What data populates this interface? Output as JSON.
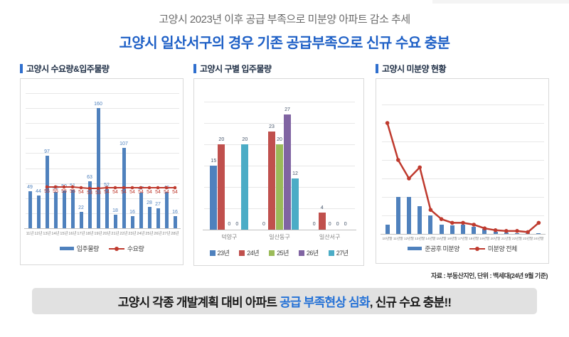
{
  "page": {
    "top_title": "고양시 2023년 이후 공급 부족으로 미분양 아파트 감소 추세",
    "subtitle": "고양시 일산서구의 경우 기존 공급부족으로 신규 수요 충분",
    "banner": {
      "prefix": "고양시 각종 개발계획 대비 아파트 ",
      "highlight": "공급 부족현상 심화",
      "suffix": ", 신규 수요 충분!!"
    },
    "source_note": "자료 : 부동산지인, 단위 : 백세대(24년 9월 기준)"
  },
  "colors": {
    "accent_blue": "#2f6fce",
    "bar_blue": "#4f81bd",
    "line_red": "#bf3a2e",
    "grid": "#e7e7e7"
  },
  "chart_data": [
    {
      "id": "goyang-demand-supply",
      "type": "bar+line",
      "title": "고양시 수요량&입주물량",
      "categories": [
        "11년",
        "12년",
        "13년",
        "14년",
        "15년",
        "16년",
        "17년",
        "18년",
        "19년",
        "20년",
        "21년",
        "22년",
        "23년",
        "24년",
        "25년",
        "26년",
        "27년",
        "28년"
      ],
      "series": [
        {
          "name": "입주물량",
          "kind": "bar",
          "color": "#4f81bd",
          "values": [
            49,
            44,
            97,
            48,
            50,
            51,
            22,
            63,
            160,
            52,
            18,
            107,
            16,
            47,
            28,
            27,
            48,
            16
          ]
        },
        {
          "name": "수요량",
          "kind": "line",
          "color": "#bf3a2e",
          "start_index": 2,
          "values": [
            55,
            55,
            55,
            55,
            54,
            53,
            53,
            54,
            54,
            54,
            54,
            54,
            54,
            54,
            54,
            54
          ]
        }
      ],
      "ylim": [
        0,
        180
      ],
      "grid_step": 20,
      "show_labels": true,
      "legend": [
        "입주물량",
        "수요량"
      ]
    },
    {
      "id": "goyang-district-supply",
      "type": "grouped-bar",
      "title": "고양시 구별 입주물량",
      "categories": [
        "덕양구",
        "일산동구",
        "일산서구"
      ],
      "series": [
        {
          "name": "23년",
          "color": "#4f81bd",
          "values": [
            15,
            0,
            0
          ]
        },
        {
          "name": "24년",
          "color": "#c0504d",
          "values": [
            20,
            23,
            4
          ]
        },
        {
          "name": "25년",
          "color": "#9bbb59",
          "values": [
            0,
            20,
            0
          ]
        },
        {
          "name": "26년",
          "color": "#8064a2",
          "values": [
            0,
            27,
            0
          ]
        },
        {
          "name": "27년",
          "color": "#4bacc6",
          "values": [
            20,
            12,
            0
          ]
        }
      ],
      "ylim": [
        0,
        30
      ],
      "grid_step": 5,
      "show_labels": true,
      "legend": [
        "23년",
        "24년",
        "25년",
        "26년",
        "27년"
      ]
    },
    {
      "id": "goyang-unsold",
      "type": "bar+line",
      "title": "고양시 미분양 현황",
      "categories": [
        "10년말",
        "11년말",
        "12년말",
        "13년말",
        "14년말",
        "15년말",
        "16년말",
        "17년말",
        "18년말",
        "19년말",
        "20년말",
        "21년말",
        "22년말",
        "23년말",
        "24년말"
      ],
      "series": [
        {
          "name": "준공후 미분양",
          "kind": "bar",
          "color": "#4f81bd",
          "values": [
            2.5,
            10,
            10,
            7.5,
            5,
            2.5,
            2.3,
            2.5,
            2,
            1.4,
            0.6,
            0.3,
            0.2,
            0.1,
            0.2
          ]
        },
        {
          "name": "미분양 전체",
          "kind": "line",
          "color": "#bf3a2e",
          "start_index": 0,
          "values": [
            30,
            20,
            15,
            18,
            6.5,
            4,
            3,
            3,
            2.5,
            1.5,
            1,
            0.8,
            0.8,
            0.5,
            3
          ]
        }
      ],
      "ylim": [
        0,
        35
      ],
      "grid_step": 5,
      "show_labels": false,
      "legend": [
        "준공후 미분양",
        "미분양 전체"
      ]
    }
  ]
}
